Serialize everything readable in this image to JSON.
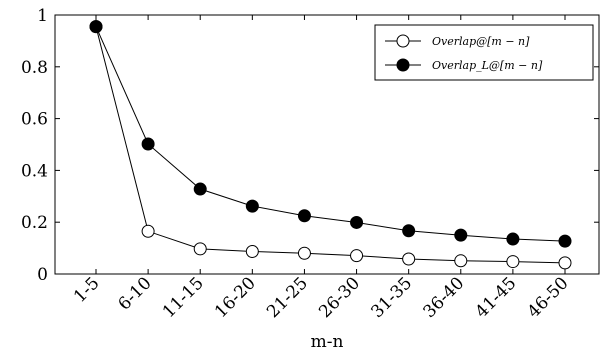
{
  "chart_data": {
    "type": "line",
    "categories": [
      "1-5",
      "6-10",
      "11-15",
      "16-20",
      "21-25",
      "26-30",
      "31-35",
      "36-40",
      "41-45",
      "46-50"
    ],
    "xlabel": "m-n",
    "ylabel": "",
    "title": "",
    "ylim": [
      0,
      1
    ],
    "yticks": [
      "0",
      "0.2",
      "0.4",
      "0.6",
      "0.8",
      "1"
    ],
    "grid": false,
    "legend_position": "top-right",
    "series": [
      {
        "name": "Overlap@[m − n]",
        "marker": "open-circle",
        "color": "#000000",
        "values": [
          0.955,
          0.165,
          0.097,
          0.087,
          0.08,
          0.071,
          0.058,
          0.051,
          0.048,
          0.043
        ]
      },
      {
        "name": "Overlap_L@[m − n]",
        "marker": "filled-circle",
        "color": "#000000",
        "values": [
          0.955,
          0.502,
          0.328,
          0.262,
          0.225,
          0.199,
          0.167,
          0.15,
          0.135,
          0.127
        ]
      }
    ]
  }
}
